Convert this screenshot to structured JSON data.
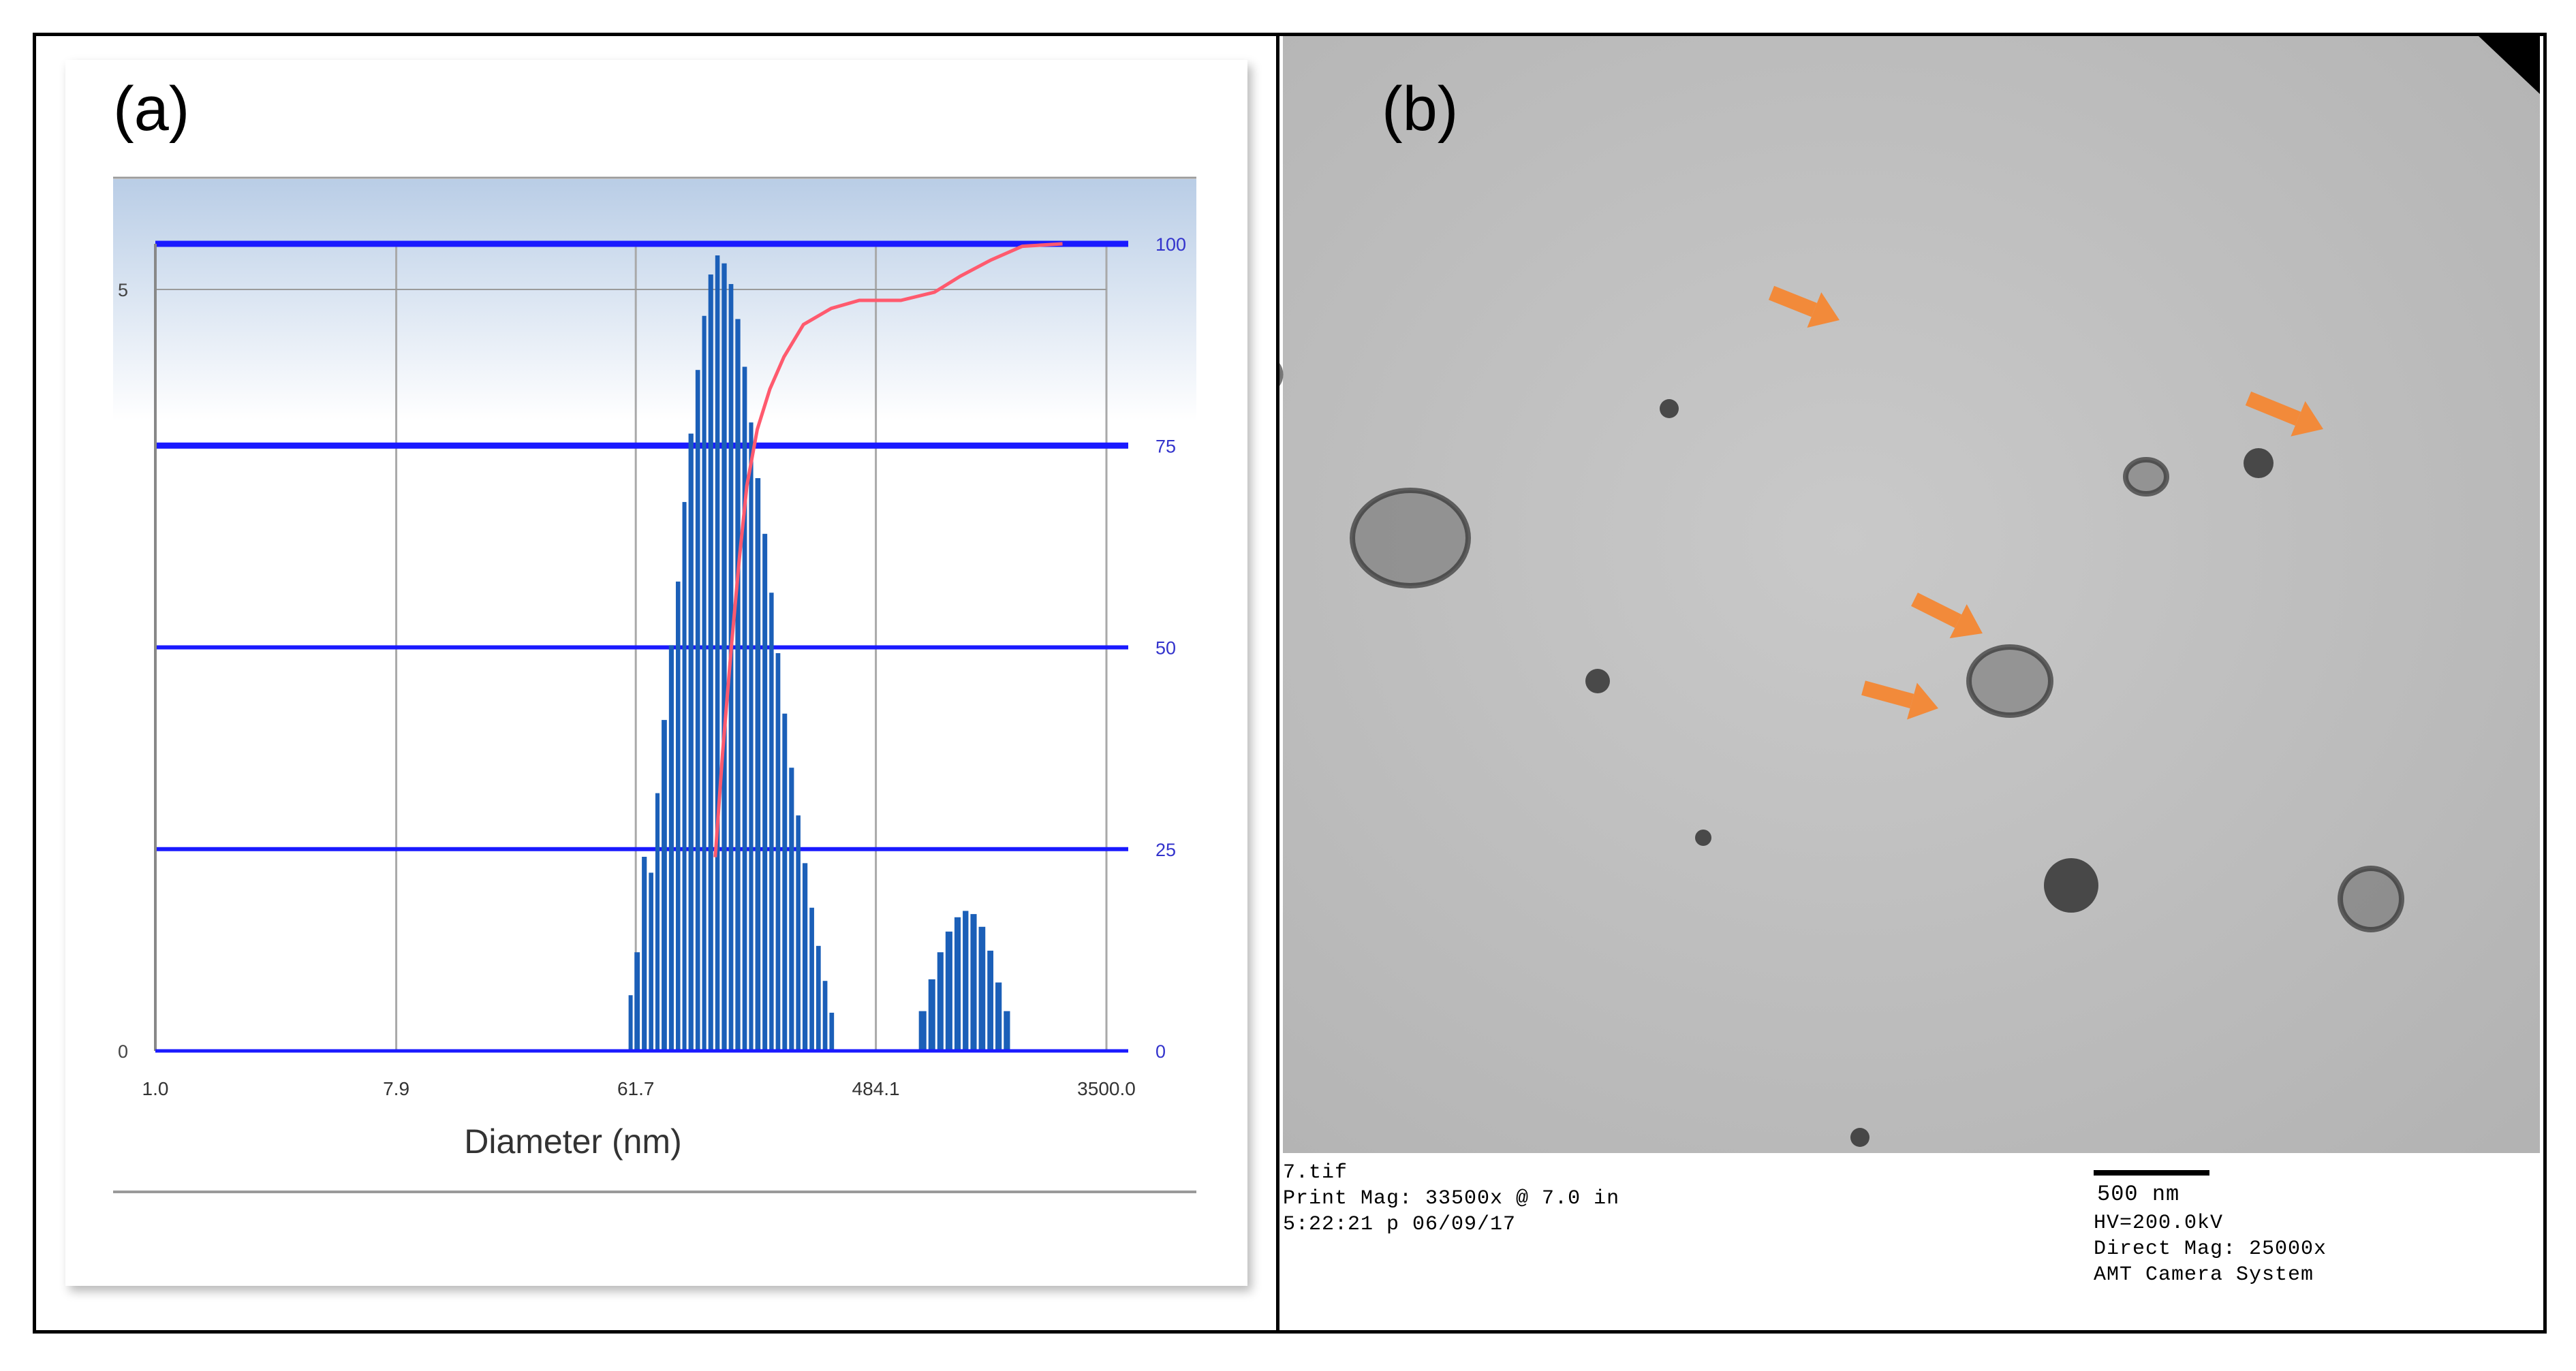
{
  "panel_a": {
    "label": "(a)"
  },
  "panel_b": {
    "label": "(b)",
    "file_name": "7.tif",
    "print_mag": "Print Mag: 33500x @ 7.0 in",
    "timestamp": "5:22:21 p 06/09/17",
    "scale_bar_label": "500 nm",
    "hv": "HV=200.0kV",
    "direct_mag": "Direct Mag: 25000x",
    "camera": "AMT Camera System",
    "arrow_color": "#f28a3a"
  },
  "chart_data": {
    "type": "bar",
    "xlabel": "Diameter (nm)",
    "x_scale": "log",
    "x_tick_labels": [
      "1.0",
      "7.9",
      "61.7",
      "484.1",
      "3500.0"
    ],
    "xlim": [
      1.0,
      3500.0
    ],
    "ylim": [
      0,
      5
    ],
    "y_left_ticks": [
      "0",
      "5"
    ],
    "y_right_ticks": [
      "0",
      "25",
      "50",
      "75",
      "100"
    ],
    "y_right_range": [
      0,
      100
    ],
    "grid": true,
    "colors": {
      "bars": "#1b5fb8",
      "grid_major": "#1a1aff",
      "cumulative": "#ff5a6e"
    },
    "series": [
      {
        "type": "bar",
        "bins": [
          {
            "d": 58,
            "v": 0.35
          },
          {
            "d": 61,
            "v": 0.62
          },
          {
            "d": 65,
            "v": 1.22
          },
          {
            "d": 69,
            "v": 1.12
          },
          {
            "d": 73,
            "v": 1.62
          },
          {
            "d": 77,
            "v": 2.08
          },
          {
            "d": 82,
            "v": 2.55
          },
          {
            "d": 87,
            "v": 2.95
          },
          {
            "d": 92,
            "v": 3.45
          },
          {
            "d": 97,
            "v": 3.88
          },
          {
            "d": 103,
            "v": 4.28
          },
          {
            "d": 109,
            "v": 4.62
          },
          {
            "d": 115,
            "v": 4.88
          },
          {
            "d": 122,
            "v": 5.0
          },
          {
            "d": 129,
            "v": 4.95
          },
          {
            "d": 137,
            "v": 4.82
          },
          {
            "d": 145,
            "v": 4.6
          },
          {
            "d": 154,
            "v": 4.3
          },
          {
            "d": 163,
            "v": 3.95
          },
          {
            "d": 172,
            "v": 3.6
          },
          {
            "d": 183,
            "v": 3.25
          },
          {
            "d": 194,
            "v": 2.88
          },
          {
            "d": 205,
            "v": 2.5
          },
          {
            "d": 217,
            "v": 2.12
          },
          {
            "d": 230,
            "v": 1.78
          },
          {
            "d": 244,
            "v": 1.48
          },
          {
            "d": 258,
            "v": 1.18
          },
          {
            "d": 274,
            "v": 0.9
          },
          {
            "d": 290,
            "v": 0.66
          },
          {
            "d": 307,
            "v": 0.44
          },
          {
            "d": 325,
            "v": 0.24
          },
          {
            "d": 700,
            "v": 0.25
          },
          {
            "d": 760,
            "v": 0.45
          },
          {
            "d": 820,
            "v": 0.62
          },
          {
            "d": 880,
            "v": 0.75
          },
          {
            "d": 950,
            "v": 0.84
          },
          {
            "d": 1020,
            "v": 0.88
          },
          {
            "d": 1090,
            "v": 0.86
          },
          {
            "d": 1170,
            "v": 0.78
          },
          {
            "d": 1260,
            "v": 0.63
          },
          {
            "d": 1350,
            "v": 0.43
          },
          {
            "d": 1450,
            "v": 0.25
          }
        ]
      },
      {
        "type": "line",
        "axis": "right",
        "points": [
          [
            122,
            24
          ],
          [
            130,
            37
          ],
          [
            140,
            50
          ],
          [
            150,
            61
          ],
          [
            160,
            70
          ],
          [
            175,
            77
          ],
          [
            195,
            82
          ],
          [
            220,
            86
          ],
          [
            260,
            90
          ],
          [
            330,
            92
          ],
          [
            420,
            93
          ],
          [
            600,
            93
          ],
          [
            800,
            94
          ],
          [
            1000,
            96
          ],
          [
            1300,
            98
          ],
          [
            1700,
            99.7
          ],
          [
            2400,
            100
          ]
        ]
      }
    ]
  }
}
